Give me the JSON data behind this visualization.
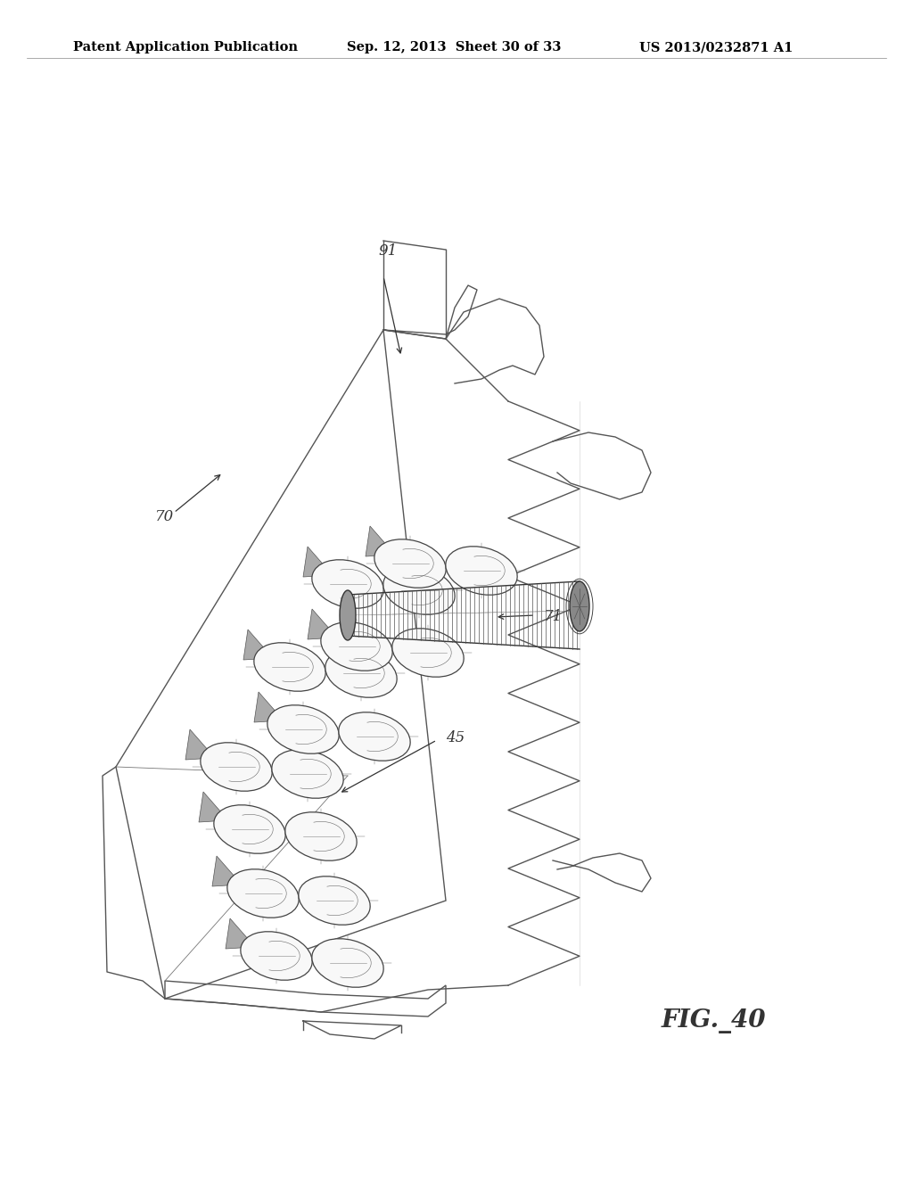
{
  "title_left": "Patent Application Publication",
  "title_center": "Sep. 12, 2013  Sheet 30 of 33",
  "title_right": "US 2013/0232871 A1",
  "fig_label": "FIG._40",
  "background_color": "#ffffff",
  "line_color": "#333333",
  "header_fontsize": 10.5,
  "fig_fontsize": 20,
  "label_fontsize": 12
}
